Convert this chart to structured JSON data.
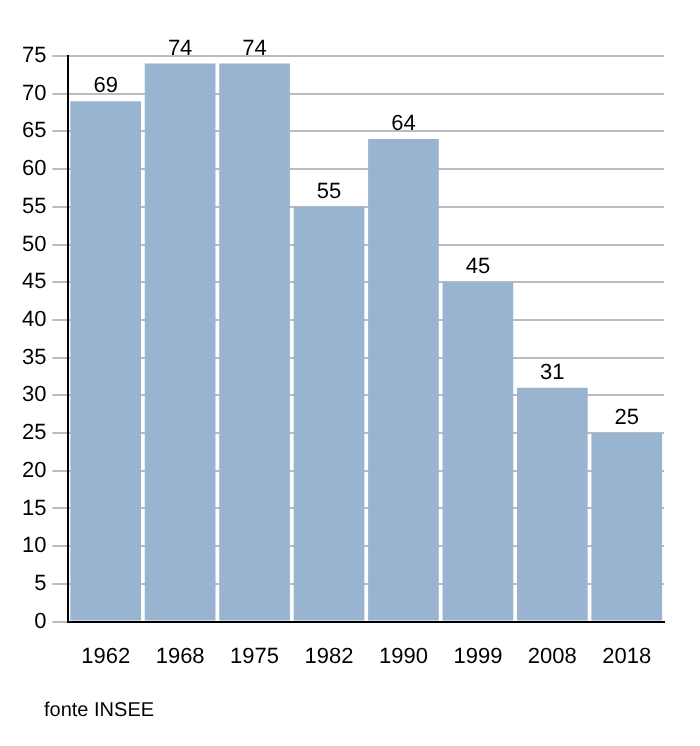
{
  "chart_data": {
    "type": "bar",
    "categories": [
      "1962",
      "1968",
      "1975",
      "1982",
      "1990",
      "1999",
      "2008",
      "2018"
    ],
    "values": [
      69,
      74,
      74,
      55,
      64,
      45,
      31,
      25
    ],
    "color": "#98b4d0",
    "ylim": [
      0,
      75
    ],
    "yticks": [
      0,
      5,
      10,
      15,
      20,
      25,
      30,
      35,
      40,
      45,
      50,
      55,
      60,
      65,
      70,
      75
    ],
    "grid": "y",
    "data_labels": true,
    "annotations": [
      "fonte INSEE"
    ]
  }
}
